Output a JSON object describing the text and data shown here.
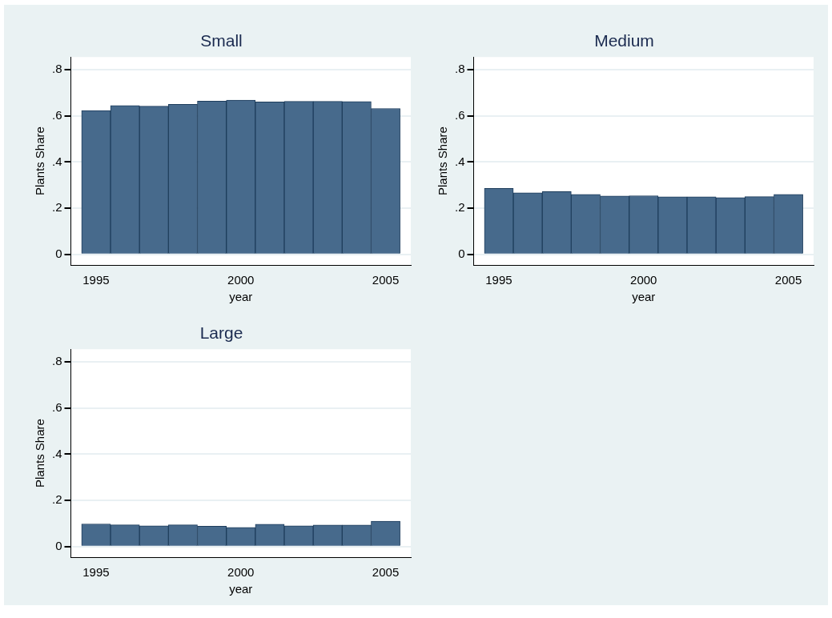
{
  "chart_data": [
    {
      "type": "bar",
      "title": "Small",
      "xlabel": "year",
      "ylabel": "Plants Share",
      "x": [
        1995,
        1996,
        1997,
        1998,
        1999,
        2000,
        2001,
        2002,
        2003,
        2004,
        2005
      ],
      "values": [
        0.623,
        0.645,
        0.642,
        0.65,
        0.664,
        0.668,
        0.66,
        0.663,
        0.663,
        0.662,
        0.632
      ],
      "color": "#476a8c",
      "xlim": [
        1994.13,
        2005.87
      ],
      "xticks": [
        1995,
        2000,
        2005
      ],
      "ylim": [
        -0.046,
        0.855
      ],
      "yticks": [
        {
          "value": 0,
          "label": "0"
        },
        {
          "value": 0.2,
          "label": ".2"
        },
        {
          "value": 0.4,
          "label": ".4"
        },
        {
          "value": 0.6,
          "label": ".6"
        },
        {
          "value": 0.8,
          "label": ".8"
        }
      ],
      "grid": "y"
    },
    {
      "type": "bar",
      "title": "Medium",
      "xlabel": "year",
      "ylabel": "Plants Share",
      "x": [
        1995,
        1996,
        1997,
        1998,
        1999,
        2000,
        2001,
        2002,
        2003,
        2004,
        2005
      ],
      "values": [
        0.286,
        0.267,
        0.272,
        0.26,
        0.253,
        0.254,
        0.249,
        0.249,
        0.246,
        0.25,
        0.26
      ],
      "color": "#476a8c",
      "xlim": [
        1994.13,
        2005.87
      ],
      "xticks": [
        1995,
        2000,
        2005
      ],
      "ylim": [
        -0.046,
        0.855
      ],
      "yticks": [
        {
          "value": 0,
          "label": "0"
        },
        {
          "value": 0.2,
          "label": ".2"
        },
        {
          "value": 0.4,
          "label": ".4"
        },
        {
          "value": 0.6,
          "label": ".6"
        },
        {
          "value": 0.8,
          "label": ".8"
        }
      ],
      "grid": "y"
    },
    {
      "type": "bar",
      "title": "Large",
      "xlabel": "year",
      "ylabel": "Plants Share",
      "x": [
        1995,
        1996,
        1997,
        1998,
        1999,
        2000,
        2001,
        2002,
        2003,
        2004,
        2005
      ],
      "values": [
        0.098,
        0.094,
        0.09,
        0.094,
        0.088,
        0.083,
        0.097,
        0.09,
        0.093,
        0.093,
        0.11
      ],
      "color": "#476a8c",
      "xlim": [
        1994.13,
        2005.87
      ],
      "xticks": [
        1995,
        2000,
        2005
      ],
      "ylim": [
        -0.046,
        0.855
      ],
      "yticks": [
        {
          "value": 0,
          "label": "0"
        },
        {
          "value": 0.2,
          "label": ".2"
        },
        {
          "value": 0.4,
          "label": ".4"
        },
        {
          "value": 0.6,
          "label": ".6"
        },
        {
          "value": 0.8,
          "label": ".8"
        }
      ],
      "grid": "y"
    }
  ]
}
